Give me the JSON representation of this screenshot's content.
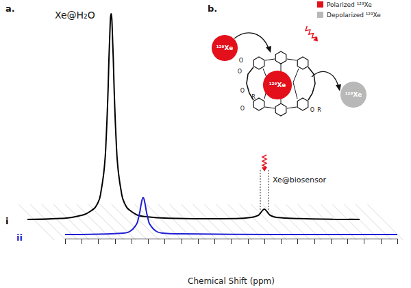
{
  "chart_data": {
    "type": "line",
    "title": "a.",
    "xlabel": "Chemical Shift (ppm)",
    "xlim": [
      0,
      100
    ],
    "xticks": [
      0,
      5,
      10,
      15,
      20,
      25,
      30,
      35,
      40,
      45,
      50,
      55,
      60,
      65,
      70,
      75,
      80,
      85,
      90,
      95,
      100
    ],
    "ylim": [
      0,
      100
    ],
    "tick_labels": false,
    "grid": false,
    "annotations": [
      "Xe@H₂O",
      "Xe@biosensor"
    ],
    "series": [
      {
        "name": "i",
        "color": "#000000",
        "x": [
          0,
          10,
          15,
          19,
          21.2,
          22.2,
          23.2,
          23.7,
          24.2,
          24.7,
          25.2,
          25.7,
          26.2,
          26.7,
          27.2,
          28.2,
          29.2,
          31.2,
          35.2,
          45,
          55,
          62,
          67.5,
          69.5,
          70.1,
          70.7,
          71.3,
          71.9,
          72.5,
          73.1,
          75,
          82,
          92,
          100
        ],
        "values": [
          0,
          0.5,
          1.5,
          4,
          8,
          14,
          26,
          39,
          59,
          85,
          100,
          85,
          59,
          39,
          26,
          14,
          8,
          4,
          1.4,
          0.5,
          0.3,
          0.4,
          1,
          2,
          3,
          4.2,
          5,
          4.2,
          3,
          2,
          1,
          0.4,
          0.1,
          0
        ]
      },
      {
        "name": "ii",
        "color": "#1f1fd6",
        "x": [
          0,
          10,
          17.5,
          19.5,
          21.5,
          22,
          22.5,
          23,
          23.5,
          24,
          24.5,
          25,
          25.5,
          27.5,
          29.5,
          35,
          50,
          75,
          100
        ],
        "values": [
          0,
          0.2,
          0.7,
          1.5,
          5,
          7.4,
          11,
          15.5,
          18,
          15.5,
          11,
          7.4,
          5,
          1.5,
          0.7,
          0.3,
          0.1,
          0,
          0
        ]
      }
    ]
  },
  "diagram": {
    "title": "b.",
    "legend": [
      {
        "label": "Polarized ¹²⁹Xe",
        "color": "#e3101b"
      },
      {
        "label": "Depolarized ¹²⁹Xe",
        "color": "#b8b8b8"
      }
    ],
    "xenon": [
      {
        "label": "¹²⁹Xe",
        "color": "#e3101b"
      },
      {
        "label": "¹²⁹Xe",
        "color": "#e3101b"
      },
      {
        "label": "¹²⁹Xe",
        "color": "#b8b8b8"
      }
    ],
    "molecule_labels": [
      "O",
      "O",
      "O",
      "R",
      "O",
      "O",
      "R"
    ]
  }
}
